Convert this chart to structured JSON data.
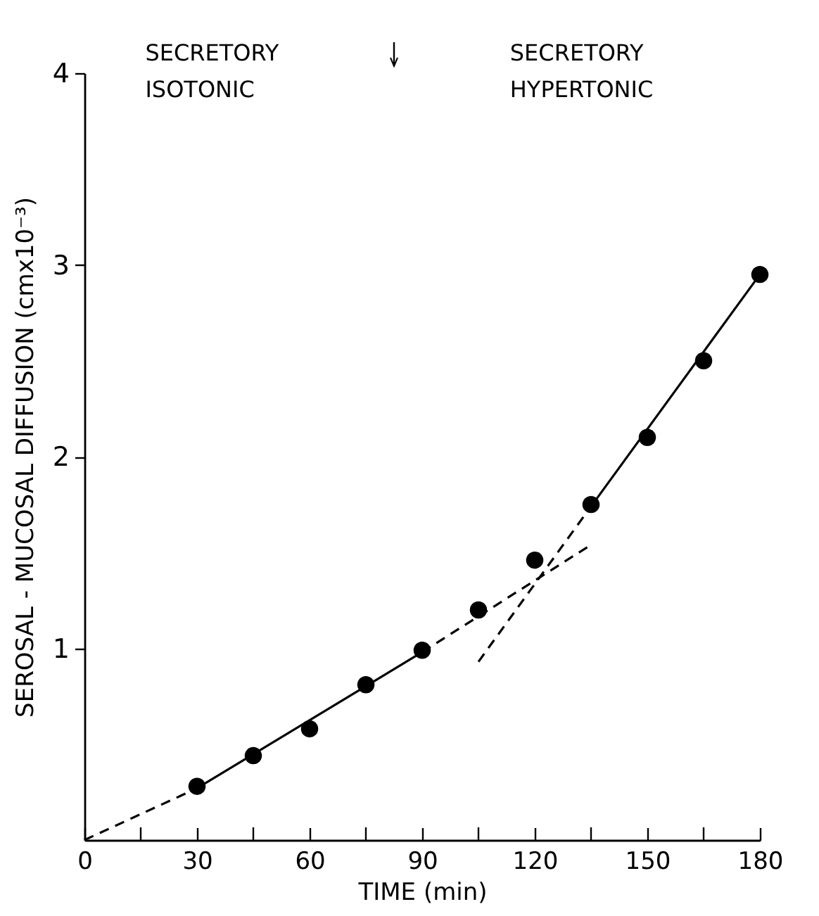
{
  "chart_data": {
    "type": "scatter",
    "xlabel": "TIME (min)",
    "ylabel": "SEROSAL - MUCOSAL DIFFUSION (cmx10⁻³)",
    "annotations": [
      "SECRETORY\nISOTONIC",
      "SECRETORY\nHYPERTONIC"
    ],
    "x": [
      30,
      45,
      60,
      75,
      90,
      105,
      120,
      135,
      150,
      165,
      180
    ],
    "series": [
      {
        "type": "scatter",
        "color": "#000000",
        "marker": "circle",
        "values": [
          0.28,
          0.44,
          0.58,
          0.81,
          0.99,
          1.2,
          1.46,
          1.75,
          2.1,
          2.5,
          2.95
        ]
      },
      {
        "type": "line",
        "color": "#000000",
        "line_style": "dashed",
        "marker": "none",
        "x": [
          0,
          30
        ],
        "values": [
          0,
          0.27
        ]
      },
      {
        "type": "line",
        "color": "#000000",
        "line_style": "solid",
        "marker": "none",
        "x": [
          30,
          90
        ],
        "values": [
          0.27,
          0.98
        ]
      },
      {
        "type": "line",
        "color": "#000000",
        "line_style": "dashed",
        "marker": "none",
        "x": [
          90,
          135
        ],
        "values": [
          0.98,
          1.54
        ]
      },
      {
        "type": "line",
        "color": "#000000",
        "line_style": "dashed",
        "marker": "none",
        "x": [
          105,
          135
        ],
        "values": [
          0.93,
          1.74
        ]
      },
      {
        "type": "line",
        "color": "#000000",
        "line_style": "solid",
        "marker": "none",
        "x": [
          135,
          180
        ],
        "values": [
          1.74,
          2.95
        ]
      }
    ],
    "xlim": [
      0,
      180
    ],
    "xticks": [
      0,
      {
        "value": 15,
        "label": null
      },
      30,
      {
        "value": 45,
        "label": null
      },
      60,
      {
        "value": 75,
        "label": null
      },
      90,
      {
        "value": 105,
        "label": null
      },
      120,
      {
        "value": 135,
        "label": null
      },
      150,
      {
        "value": 165,
        "label": null
      },
      180
    ],
    "ylim": [
      0,
      4
    ],
    "yticks": [
      1,
      2,
      3,
      4
    ],
    "grid": false
  }
}
